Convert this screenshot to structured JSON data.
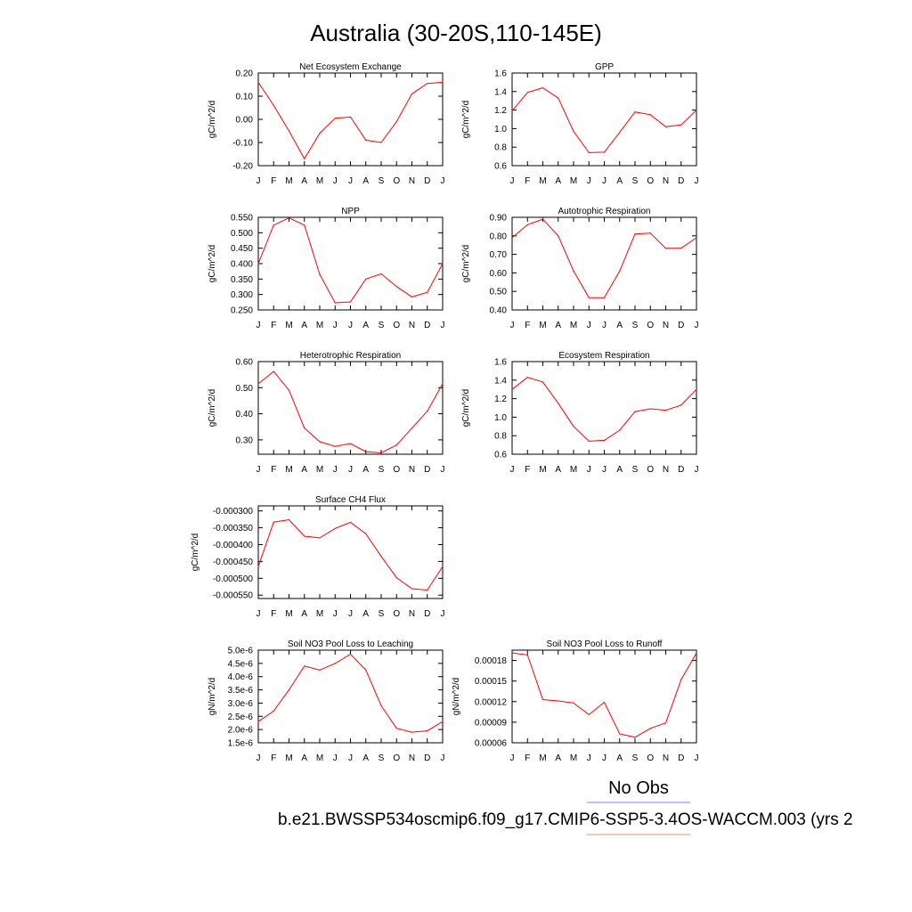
{
  "figure": {
    "title": "Australia (30-20S,110-145E)",
    "legend_obs": "No Obs",
    "legend_case": "b.e21.BWSSP534oscmip6.f09_g17.CMIP6-SSP5-3.4OS-WACCM.003 (yrs 2",
    "colors": {
      "series": "#ff0000",
      "obs_line": "#8080ff",
      "case_line": "#ff8080",
      "axis": "#000000"
    }
  },
  "chart_data": [
    {
      "type": "line",
      "title": "Net Ecosystem Exchange",
      "ylabel": "gC/m^2/d",
      "categories": [
        "J",
        "F",
        "M",
        "A",
        "M",
        "J",
        "J",
        "A",
        "S",
        "O",
        "N",
        "D",
        "J"
      ],
      "ylim": [
        -0.2,
        0.2
      ],
      "yticks": [
        "0.20",
        "0.10",
        "0.00",
        "-0.10",
        "-0.20"
      ],
      "yticks_values": [
        0.2,
        0.1,
        0.0,
        -0.1,
        -0.2
      ],
      "values": [
        0.16,
        0.06,
        -0.05,
        -0.17,
        -0.06,
        0.005,
        0.01,
        -0.09,
        -0.1,
        -0.01,
        0.11,
        0.155,
        0.16
      ]
    },
    {
      "type": "line",
      "title": "GPP",
      "ylabel": "gC/m^2/d",
      "categories": [
        "J",
        "F",
        "M",
        "A",
        "M",
        "J",
        "J",
        "A",
        "S",
        "O",
        "N",
        "D",
        "J"
      ],
      "ylim": [
        0.6,
        1.6
      ],
      "yticks": [
        "1.6",
        "1.4",
        "1.2",
        "1.0",
        "0.8",
        "0.6"
      ],
      "yticks_values": [
        1.6,
        1.4,
        1.2,
        1.0,
        0.8,
        0.6
      ],
      "values": [
        1.19,
        1.39,
        1.44,
        1.33,
        0.97,
        0.74,
        0.745,
        0.96,
        1.18,
        1.15,
        1.02,
        1.04,
        1.2
      ]
    },
    {
      "type": "line",
      "title": "NPP",
      "ylabel": "gC/m^2/d",
      "categories": [
        "J",
        "F",
        "M",
        "A",
        "M",
        "J",
        "J",
        "A",
        "S",
        "O",
        "N",
        "D",
        "J"
      ],
      "ylim": [
        0.25,
        0.55
      ],
      "yticks": [
        "0.550",
        "0.500",
        "0.450",
        "0.400",
        "0.350",
        "0.300",
        "0.250"
      ],
      "yticks_values": [
        0.55,
        0.5,
        0.45,
        0.4,
        0.35,
        0.3,
        0.25
      ],
      "values": [
        0.4,
        0.525,
        0.548,
        0.525,
        0.365,
        0.273,
        0.276,
        0.35,
        0.367,
        0.326,
        0.292,
        0.307,
        0.4
      ]
    },
    {
      "type": "line",
      "title": "Autotrophic Respiration",
      "ylabel": "gC/m^2/d",
      "categories": [
        "J",
        "F",
        "M",
        "A",
        "M",
        "J",
        "J",
        "A",
        "S",
        "O",
        "N",
        "D",
        "J"
      ],
      "ylim": [
        0.4,
        0.9
      ],
      "yticks": [
        "0.90",
        "0.80",
        "0.70",
        "0.60",
        "0.50",
        "0.40"
      ],
      "yticks_values": [
        0.9,
        0.8,
        0.7,
        0.6,
        0.5,
        0.4
      ],
      "values": [
        0.79,
        0.86,
        0.89,
        0.8,
        0.61,
        0.466,
        0.466,
        0.61,
        0.81,
        0.815,
        0.733,
        0.733,
        0.79
      ]
    },
    {
      "type": "line",
      "title": "Heterotrophic Respiration",
      "ylabel": "gC/m^2/d",
      "categories": [
        "J",
        "F",
        "M",
        "A",
        "M",
        "J",
        "J",
        "A",
        "S",
        "O",
        "N",
        "D",
        "J"
      ],
      "ylim": [
        0.245,
        0.6
      ],
      "yticks": [
        "0.60",
        "0.50",
        "0.40",
        "0.30"
      ],
      "yticks_values": [
        0.6,
        0.5,
        0.4,
        0.3
      ],
      "values": [
        0.515,
        0.562,
        0.49,
        0.345,
        0.293,
        0.275,
        0.286,
        0.255,
        0.25,
        0.28,
        0.345,
        0.41,
        0.515
      ]
    },
    {
      "type": "line",
      "title": "Ecosystem Respiration",
      "ylabel": "gC/m^2/d",
      "categories": [
        "J",
        "F",
        "M",
        "A",
        "M",
        "J",
        "J",
        "A",
        "S",
        "O",
        "N",
        "D",
        "J"
      ],
      "ylim": [
        0.6,
        1.6
      ],
      "yticks": [
        "1.6",
        "1.4",
        "1.2",
        "1.0",
        "0.8",
        "0.6"
      ],
      "yticks_values": [
        1.6,
        1.4,
        1.2,
        1.0,
        0.8,
        0.6
      ],
      "values": [
        1.3,
        1.43,
        1.38,
        1.15,
        0.9,
        0.74,
        0.75,
        0.86,
        1.06,
        1.09,
        1.075,
        1.13,
        1.3
      ]
    },
    {
      "type": "line",
      "title": "Surface CH4 Flux",
      "ylabel": "gC/m^2/d",
      "categories": [
        "J",
        "F",
        "M",
        "A",
        "M",
        "J",
        "J",
        "A",
        "S",
        "O",
        "N",
        "D",
        "J"
      ],
      "ylim": [
        -0.00056,
        -0.000285
      ],
      "yticks": [
        "-0.000300",
        "-0.000350",
        "-0.000400",
        "-0.000450",
        "-0.000500",
        "-0.000550"
      ],
      "yticks_values": [
        -0.0003,
        -0.00035,
        -0.0004,
        -0.00045,
        -0.0005,
        -0.00055
      ],
      "values": [
        -0.000465,
        -0.000333,
        -0.000326,
        -0.000375,
        -0.00038,
        -0.000352,
        -0.000334,
        -0.000368,
        -0.000435,
        -0.000498,
        -0.000531,
        -0.000535,
        -0.000465
      ]
    },
    {
      "type": "line",
      "title": "Soil NO3 Pool Loss to Leaching",
      "ylabel": "gN/m^2/d",
      "categories": [
        "J",
        "F",
        "M",
        "A",
        "M",
        "J",
        "J",
        "A",
        "S",
        "O",
        "N",
        "D",
        "J"
      ],
      "ylim": [
        1.5e-06,
        5e-06
      ],
      "yticks": [
        "5.0e-6",
        "4.5e-6",
        "4.0e-6",
        "3.5e-6",
        "3.0e-6",
        "2.5e-6",
        "2.0e-6",
        "1.5e-6"
      ],
      "yticks_values": [
        5e-06,
        4.5e-06,
        4e-06,
        3.5e-06,
        3e-06,
        2.5e-06,
        2e-06,
        1.5e-06
      ],
      "values": [
        2.3e-06,
        2.7e-06,
        3.5e-06,
        4.4e-06,
        4.25e-06,
        4.5e-06,
        4.85e-06,
        4.25e-06,
        2.9e-06,
        2.05e-06,
        1.9e-06,
        1.95e-06,
        2.3e-06
      ]
    },
    {
      "type": "line",
      "title": "Soil NO3 Pool Loss to Runoff",
      "ylabel": "gN/m^2/d",
      "categories": [
        "J",
        "F",
        "M",
        "A",
        "M",
        "J",
        "J",
        "A",
        "S",
        "O",
        "N",
        "D",
        "J"
      ],
      "ylim": [
        6e-05,
        0.000195
      ],
      "yticks": [
        "0.00018",
        "0.00015",
        "0.00012",
        "0.00009",
        "0.00006"
      ],
      "yticks_values": [
        0.00018,
        0.00015,
        0.00012,
        9e-05,
        6e-05
      ],
      "values": [
        0.000191,
        0.000188,
        0.000123,
        0.000121,
        0.000118,
        0.000101,
        0.000119,
        7.3e-05,
        6.8e-05,
        8.1e-05,
        8.9e-05,
        0.000152,
        0.000191
      ]
    }
  ]
}
